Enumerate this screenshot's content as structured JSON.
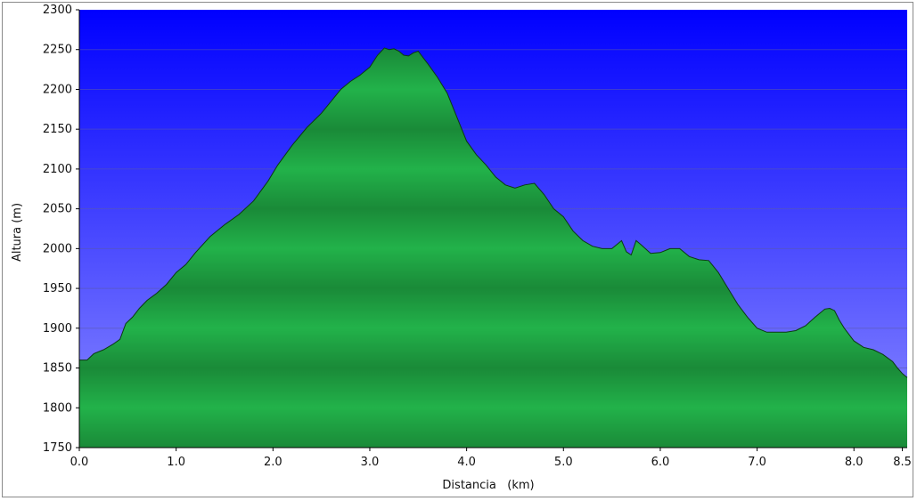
{
  "chart_data": {
    "type": "area",
    "title": "",
    "xlabel": "Distancia   (km)",
    "ylabel": "Altura (m)",
    "xlim": [
      0,
      8.55
    ],
    "ylim": [
      1750,
      2300
    ],
    "x_ticks": [
      {
        "value": 0,
        "label": "0.0"
      },
      {
        "value": 1,
        "label": "1.0"
      },
      {
        "value": 2,
        "label": "2.0"
      },
      {
        "value": 3,
        "label": "3.0"
      },
      {
        "value": 4,
        "label": "4.0"
      },
      {
        "value": 5,
        "label": "5.0"
      },
      {
        "value": 6,
        "label": "6.0"
      },
      {
        "value": 7,
        "label": "7.0"
      },
      {
        "value": 8,
        "label": "8.0"
      },
      {
        "value": 8.5,
        "label": "8.5"
      }
    ],
    "y_ticks": [
      {
        "value": 1750,
        "label": "1750"
      },
      {
        "value": 1800,
        "label": "1800"
      },
      {
        "value": 1850,
        "label": "1850"
      },
      {
        "value": 1900,
        "label": "1900"
      },
      {
        "value": 1950,
        "label": "1950"
      },
      {
        "value": 2000,
        "label": "2000"
      },
      {
        "value": 2050,
        "label": "2050"
      },
      {
        "value": 2100,
        "label": "2100"
      },
      {
        "value": 2150,
        "label": "2150"
      },
      {
        "value": 2200,
        "label": "2200"
      },
      {
        "value": 2250,
        "label": "2250"
      },
      {
        "value": 2300,
        "label": "2300"
      }
    ],
    "grid": true,
    "legend": "none",
    "colors": {
      "sky_top": "#0000ff",
      "sky_bottom": "#8c8cff",
      "fill_light": "#22b24a",
      "fill_dark": "#1a8a38",
      "outline": "#0b3a12"
    },
    "series": [
      {
        "x": [
          0.0,
          0.08,
          0.15,
          0.25,
          0.35,
          0.42,
          0.48,
          0.55,
          0.62,
          0.7,
          0.8,
          0.9,
          1.0,
          1.1,
          1.2,
          1.35,
          1.5,
          1.65,
          1.8,
          1.95,
          2.05,
          2.2,
          2.35,
          2.5,
          2.6,
          2.7,
          2.8,
          2.9,
          3.0,
          3.08,
          3.15,
          3.2,
          3.25,
          3.3,
          3.35,
          3.4,
          3.45,
          3.5,
          3.55,
          3.6,
          3.7,
          3.8,
          3.9,
          4.0,
          4.1,
          4.2,
          4.3,
          4.4,
          4.5,
          4.6,
          4.7,
          4.8,
          4.9,
          5.0,
          5.1,
          5.2,
          5.3,
          5.4,
          5.5,
          5.6,
          5.65,
          5.7,
          5.75,
          5.8,
          5.9,
          6.0,
          6.1,
          6.2,
          6.3,
          6.4,
          6.5,
          6.6,
          6.7,
          6.8,
          6.9,
          7.0,
          7.1,
          7.2,
          7.3,
          7.4,
          7.5,
          7.6,
          7.7,
          7.75,
          7.8,
          7.85,
          7.9,
          8.0,
          8.1,
          8.2,
          8.3,
          8.4,
          8.45,
          8.5,
          8.55
        ],
        "values": [
          1860,
          1860,
          1868,
          1873,
          1880,
          1886,
          1906,
          1914,
          1925,
          1935,
          1944,
          1955,
          1970,
          1980,
          1995,
          2015,
          2030,
          2043,
          2060,
          2085,
          2105,
          2130,
          2152,
          2170,
          2185,
          2200,
          2210,
          2218,
          2228,
          2243,
          2252,
          2250,
          2251,
          2248,
          2243,
          2242,
          2246,
          2248,
          2240,
          2232,
          2215,
          2195,
          2165,
          2135,
          2118,
          2105,
          2090,
          2080,
          2076,
          2080,
          2082,
          2068,
          2050,
          2040,
          2022,
          2010,
          2003,
          2000,
          2000,
          2010,
          1996,
          1992,
          2010,
          2005,
          1994,
          1995,
          2000,
          2000,
          1990,
          1986,
          1985,
          1970,
          1950,
          1930,
          1914,
          1900,
          1895,
          1895,
          1895,
          1897,
          1903,
          1914,
          1924,
          1925,
          1922,
          1910,
          1900,
          1884,
          1876,
          1873,
          1867,
          1858,
          1850,
          1843,
          1838
        ]
      }
    ]
  }
}
